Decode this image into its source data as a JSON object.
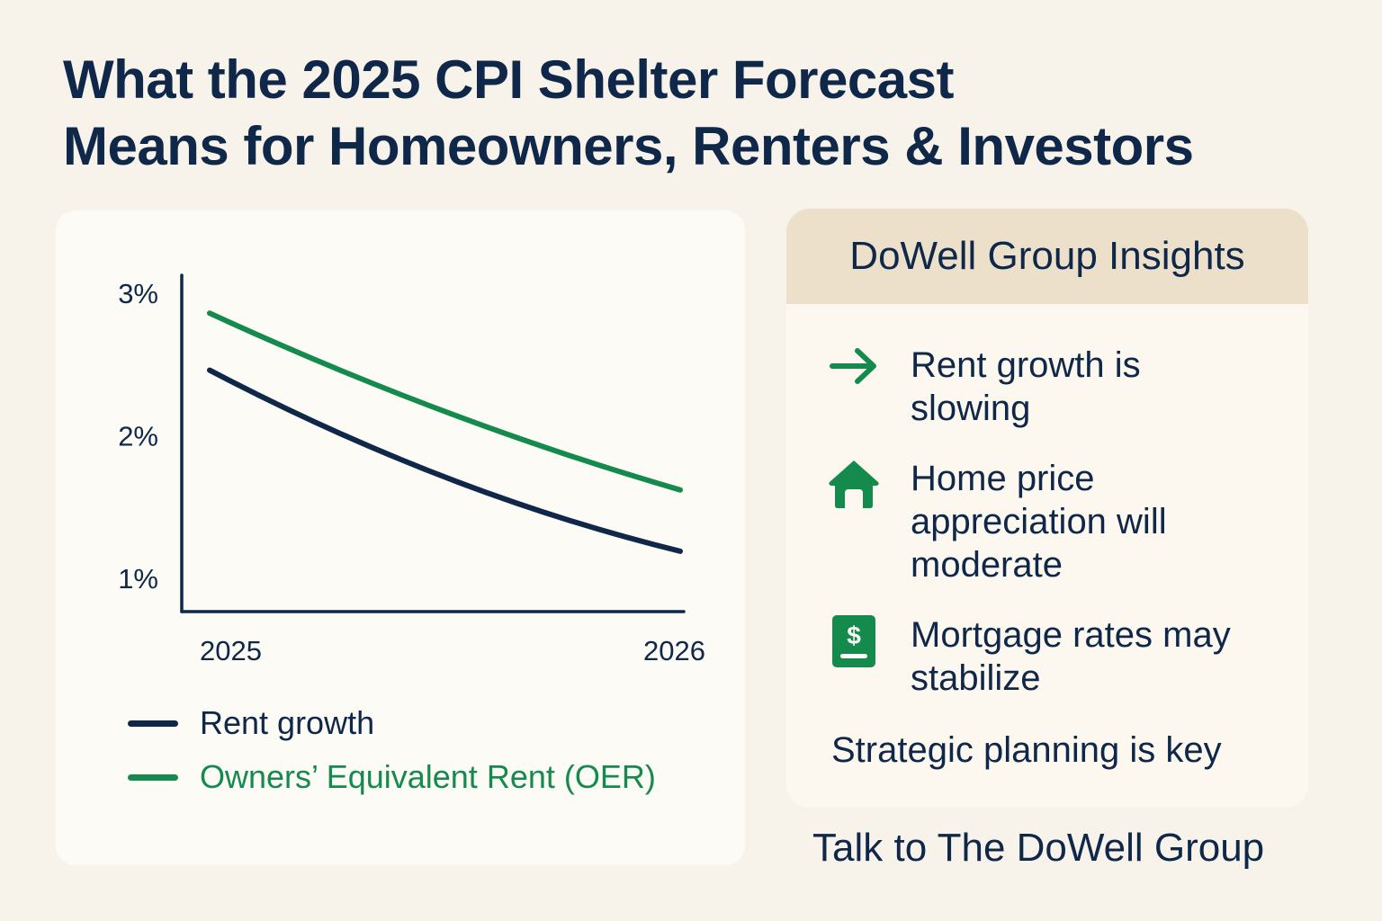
{
  "page": {
    "title_line1": "What the 2025 CPI Shelter Forecast",
    "title_line2": "Means for Homeowners, Renters & Investors"
  },
  "colors": {
    "navy": "#0f2748",
    "green": "#148a4c",
    "background": "#f8f3ea",
    "header_beige": "#ede0cb"
  },
  "chart_data": {
    "type": "line",
    "title": "",
    "xlabel": "",
    "ylabel": "",
    "x": [
      2025,
      2025.5,
      2026
    ],
    "x_tick_labels": [
      "2025",
      "2026"
    ],
    "y_tick_labels": [
      "3%",
      "2%",
      "1%"
    ],
    "y_ticks": [
      3,
      2,
      1
    ],
    "ylim": [
      0.76,
      3.15
    ],
    "grid": false,
    "legend_position": "bottom",
    "series": [
      {
        "name": "Rent growth",
        "color": "#0f2748",
        "values": [
          2.46,
          1.71,
          1.19
        ]
      },
      {
        "name": "Owners’ Equivalent Rent (OER)",
        "color": "#148a4c",
        "values": [
          2.86,
          2.17,
          1.62
        ]
      }
    ]
  },
  "legend": [
    {
      "label": "Rent growth",
      "color": "#0f2748"
    },
    {
      "label": "Owners’ Equivalent Rent (OER)",
      "color": "#148a4c"
    }
  ],
  "insights": {
    "title": "DoWell Group Insights",
    "items": [
      {
        "icon": "arrow-right-icon",
        "text": "Rent growth is slowing"
      },
      {
        "icon": "house-icon",
        "text": "Home price appreciation will moderate"
      },
      {
        "icon": "dollar-document-icon",
        "text": "Mortgage rates may stabilize"
      }
    ],
    "footer": "Strategic planning is key"
  },
  "cta": {
    "label": "Talk to The DoWell Group"
  }
}
